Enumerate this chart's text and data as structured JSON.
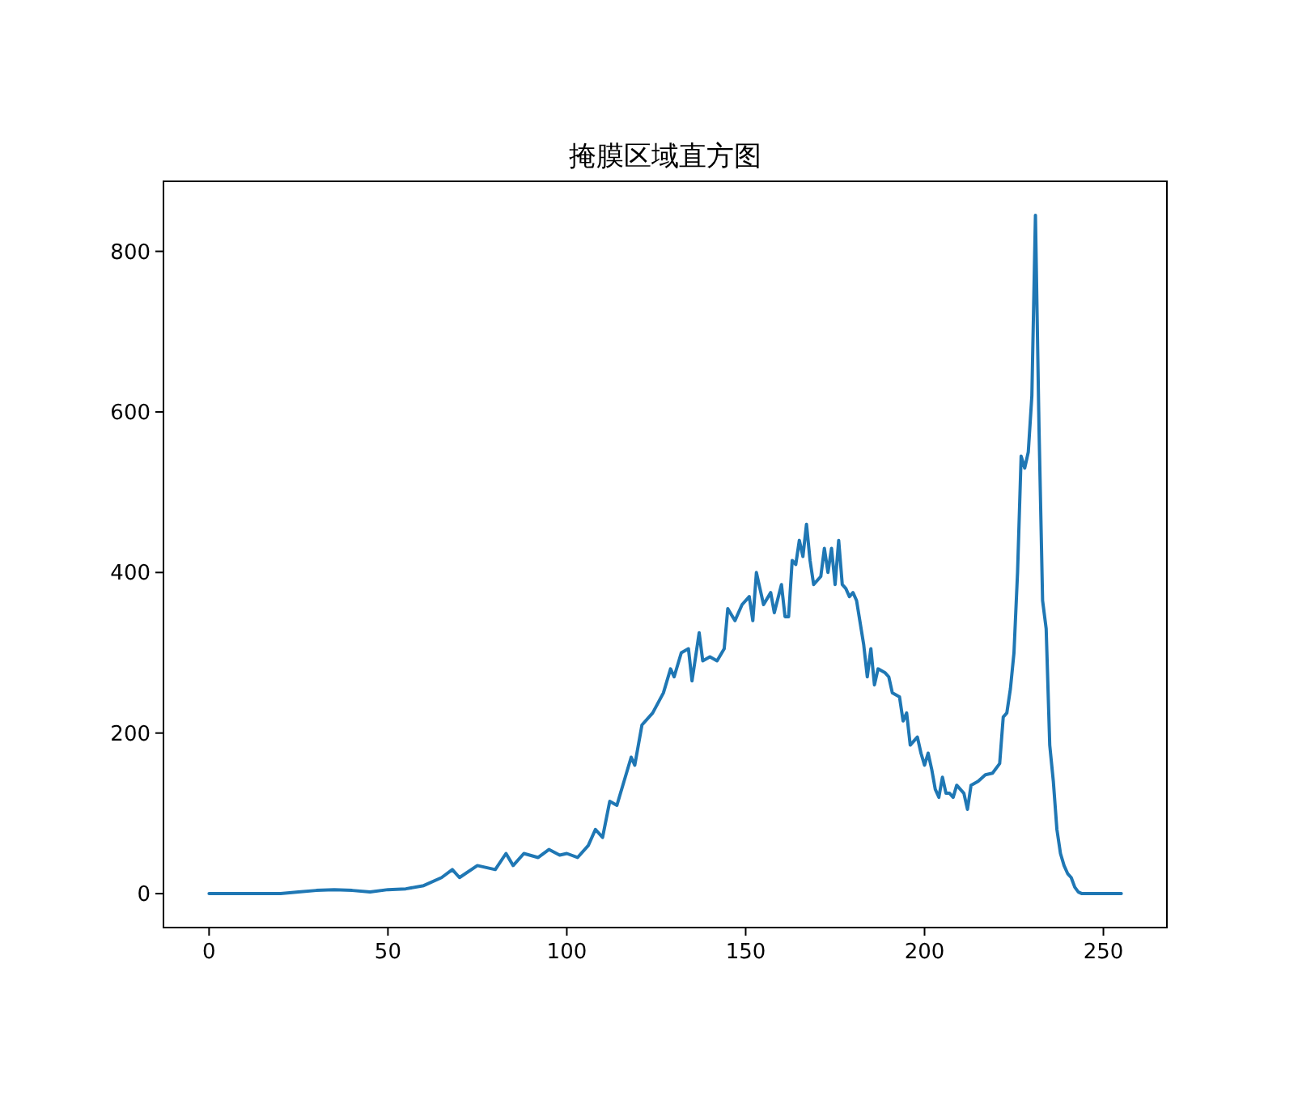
{
  "chart_data": {
    "type": "line",
    "title": "掩膜区域直方图",
    "x": [
      0,
      5,
      10,
      15,
      20,
      25,
      30,
      35,
      40,
      45,
      50,
      55,
      60,
      65,
      68,
      70,
      75,
      80,
      83,
      85,
      88,
      92,
      95,
      98,
      100,
      103,
      106,
      108,
      110,
      112,
      114,
      116,
      118,
      119,
      121,
      124,
      127,
      129,
      130,
      132,
      134,
      135,
      137,
      138,
      140,
      142,
      144,
      145,
      147,
      149,
      151,
      152,
      153,
      155,
      157,
      158,
      160,
      161,
      162,
      163,
      164,
      165,
      166,
      167,
      168,
      169,
      171,
      172,
      173,
      174,
      175,
      176,
      177,
      178,
      179,
      180,
      181,
      183,
      184,
      185,
      186,
      187,
      189,
      190,
      191,
      193,
      194,
      195,
      196,
      198,
      199,
      200,
      201,
      202,
      203,
      204,
      205,
      206,
      207,
      208,
      209,
      211,
      212,
      213,
      215,
      217,
      219,
      221,
      222,
      223,
      224,
      225,
      226,
      227,
      228,
      229,
      230,
      231,
      232,
      233,
      234,
      235,
      236,
      237,
      238,
      239,
      240,
      241,
      242,
      243,
      244,
      250,
      255
    ],
    "series": [
      {
        "color": "#1f77b4",
        "values": [
          0,
          0,
          0,
          0,
          0,
          2,
          4,
          5,
          4,
          2,
          5,
          6,
          10,
          20,
          30,
          20,
          35,
          30,
          50,
          35,
          50,
          45,
          55,
          48,
          50,
          45,
          60,
          80,
          70,
          115,
          110,
          140,
          170,
          160,
          210,
          225,
          250,
          280,
          270,
          300,
          305,
          265,
          325,
          290,
          295,
          290,
          305,
          355,
          340,
          360,
          370,
          340,
          400,
          360,
          375,
          350,
          385,
          345,
          345,
          415,
          410,
          440,
          420,
          460,
          415,
          385,
          395,
          430,
          400,
          430,
          385,
          440,
          385,
          380,
          370,
          375,
          365,
          310,
          270,
          305,
          260,
          280,
          275,
          270,
          250,
          245,
          215,
          225,
          185,
          195,
          175,
          160,
          175,
          155,
          130,
          120,
          145,
          125,
          125,
          120,
          135,
          125,
          105,
          135,
          140,
          148,
          150,
          162,
          220,
          225,
          255,
          300,
          400,
          545,
          530,
          550,
          620,
          845,
          580,
          365,
          330,
          185,
          140,
          80,
          50,
          35,
          25,
          20,
          8,
          2,
          0,
          0,
          0
        ]
      }
    ],
    "xlim": [
      -12.75,
      267.75
    ],
    "ylim": [
      -42.25,
      887.25
    ],
    "xticks": [
      0,
      50,
      100,
      150,
      200,
      250
    ],
    "yticks": [
      0,
      200,
      400,
      600,
      800
    ],
    "grid": false,
    "line_style": "solid"
  }
}
